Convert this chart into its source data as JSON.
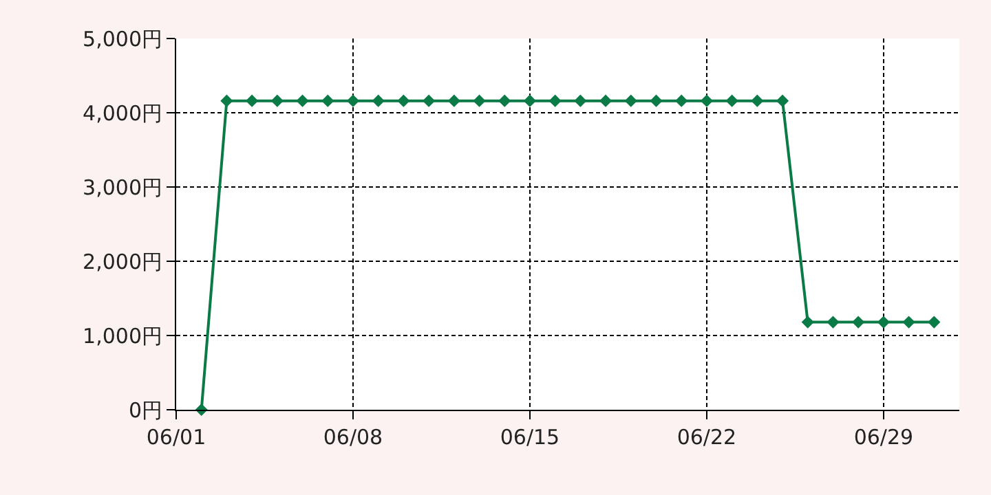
{
  "chart_data": {
    "type": "line",
    "marker": "diamond",
    "line_style": "solid",
    "grid": true,
    "x": [
      "--06-02",
      "--06-03",
      "--06-04",
      "--06-05",
      "--06-06",
      "--06-07",
      "--06-08",
      "--06-09",
      "--06-10",
      "--06-11",
      "--06-12",
      "--06-13",
      "--06-14",
      "--06-15",
      "--06-16",
      "--06-17",
      "--06-18",
      "--06-19",
      "--06-20",
      "--06-21",
      "--06-22",
      "--06-23",
      "--06-24",
      "--06-25",
      "--06-26",
      "--06-27",
      "--06-28",
      "--06-29",
      "--06-30",
      "--07-01"
    ],
    "series": [
      {
        "color": "#0a7a46",
        "values": [
          0,
          4160,
          4160,
          4160,
          4160,
          4160,
          4160,
          4160,
          4160,
          4160,
          4160,
          4160,
          4160,
          4160,
          4160,
          4160,
          4160,
          4160,
          4160,
          4160,
          4160,
          4160,
          4160,
          4160,
          1180,
          1180,
          1180,
          1180,
          1180,
          1180
        ]
      }
    ],
    "xlim": [
      "--06-01",
      "--07-02"
    ],
    "xticks": [
      {
        "value": "--06-01",
        "label": "06/01"
      },
      {
        "value": "--06-08",
        "label": "06/08"
      },
      {
        "value": "--06-15",
        "label": "06/15"
      },
      {
        "value": "--06-22",
        "label": "06/22"
      },
      {
        "value": "--06-29",
        "label": "06/29"
      }
    ],
    "ylim": [
      0,
      5000
    ],
    "yticks": [
      {
        "value": 0,
        "label": "0円"
      },
      {
        "value": 1000,
        "label": "1,000円"
      },
      {
        "value": 2000,
        "label": "2,000円"
      },
      {
        "value": 3000,
        "label": "3,000円"
      },
      {
        "value": 4000,
        "label": "4,000円"
      },
      {
        "value": 5000,
        "label": "5,000円"
      }
    ]
  }
}
